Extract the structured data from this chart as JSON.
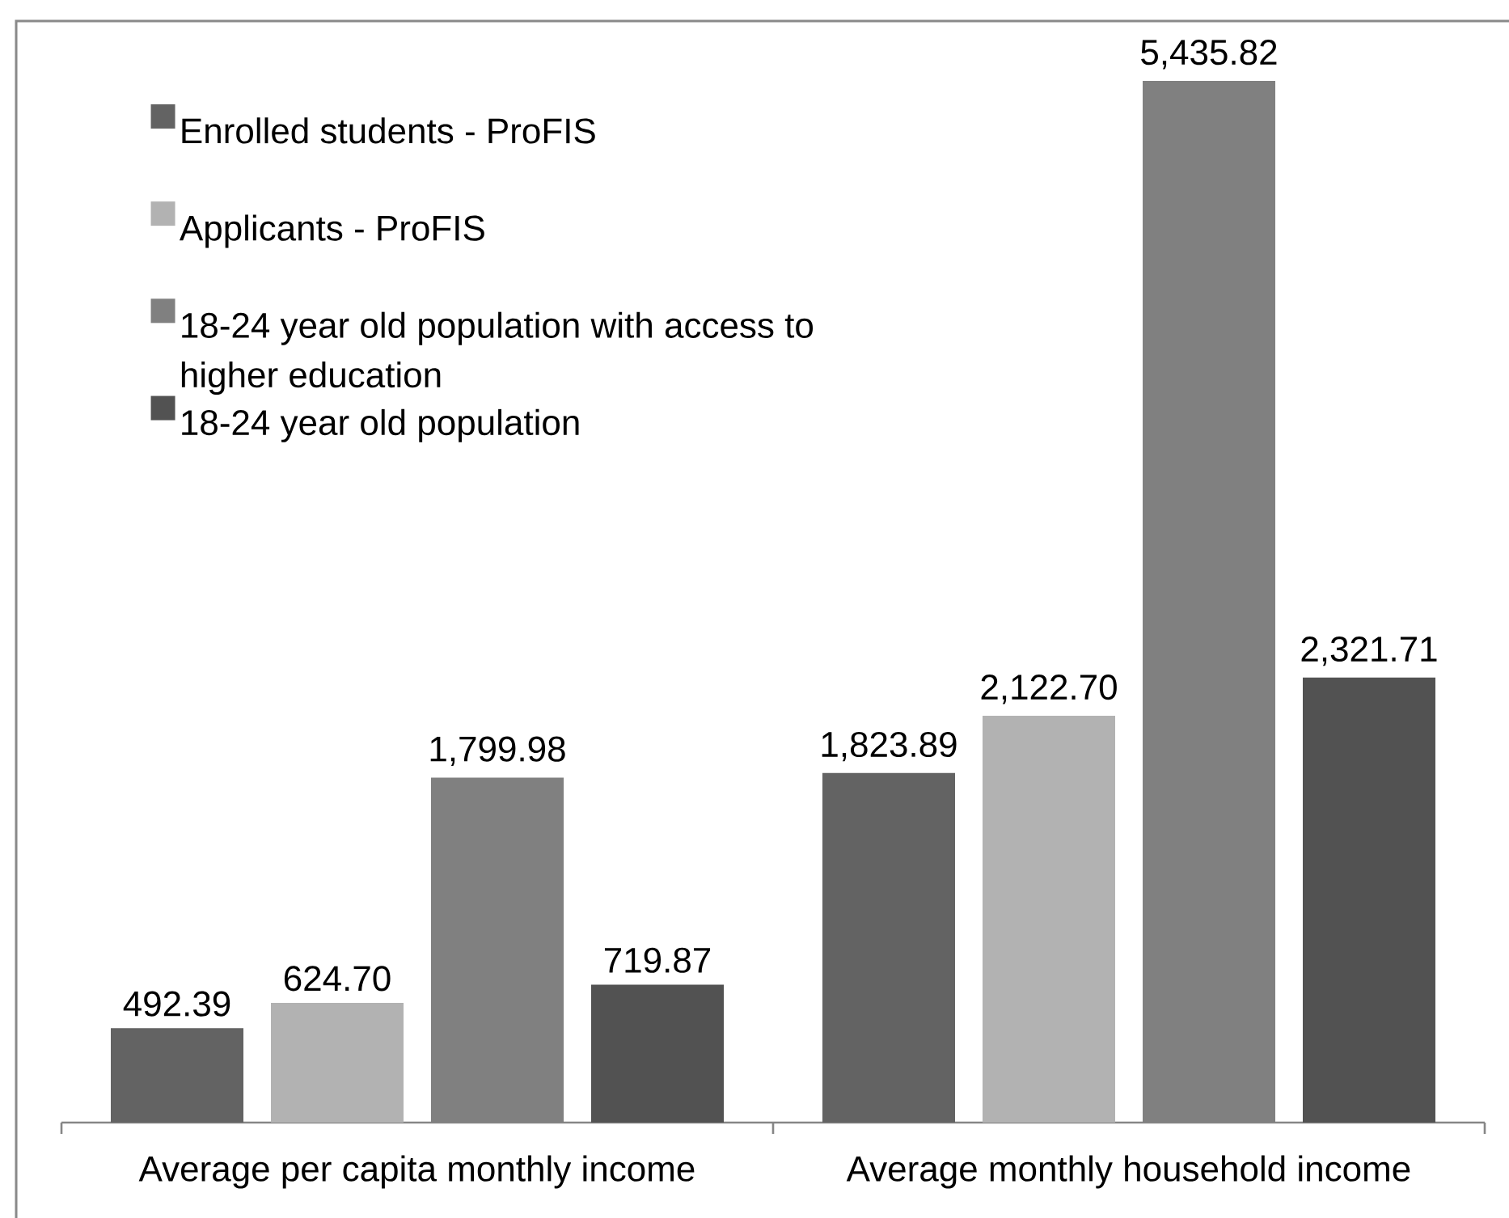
{
  "chart_data": {
    "type": "bar",
    "categories": [
      "Average per capita monthly income",
      "Average monthly household income"
    ],
    "series": [
      {
        "name": "Enrolled students - ProFIS",
        "color": "#636363",
        "values": [
          492.39,
          1823.89
        ],
        "value_labels": [
          "492.39",
          "1,823.89"
        ]
      },
      {
        "name": "Applicants - ProFIS",
        "color": "#b2b2b2",
        "values": [
          624.7,
          2122.7
        ],
        "value_labels": [
          "624.70",
          "2,122.70"
        ]
      },
      {
        "name": "18-24 year old population with access to higher education",
        "color": "#808080",
        "values": [
          1799.98,
          5435.82
        ],
        "value_labels": [
          "1,799.98",
          "5,435.82"
        ]
      },
      {
        "name": "18-24 year old population",
        "color": "#525252",
        "values": [
          719.87,
          2321.71
        ],
        "value_labels": [
          "719.87",
          "2,321.71"
        ]
      }
    ],
    "legend": "top left",
    "tick_labels": "x"
  }
}
